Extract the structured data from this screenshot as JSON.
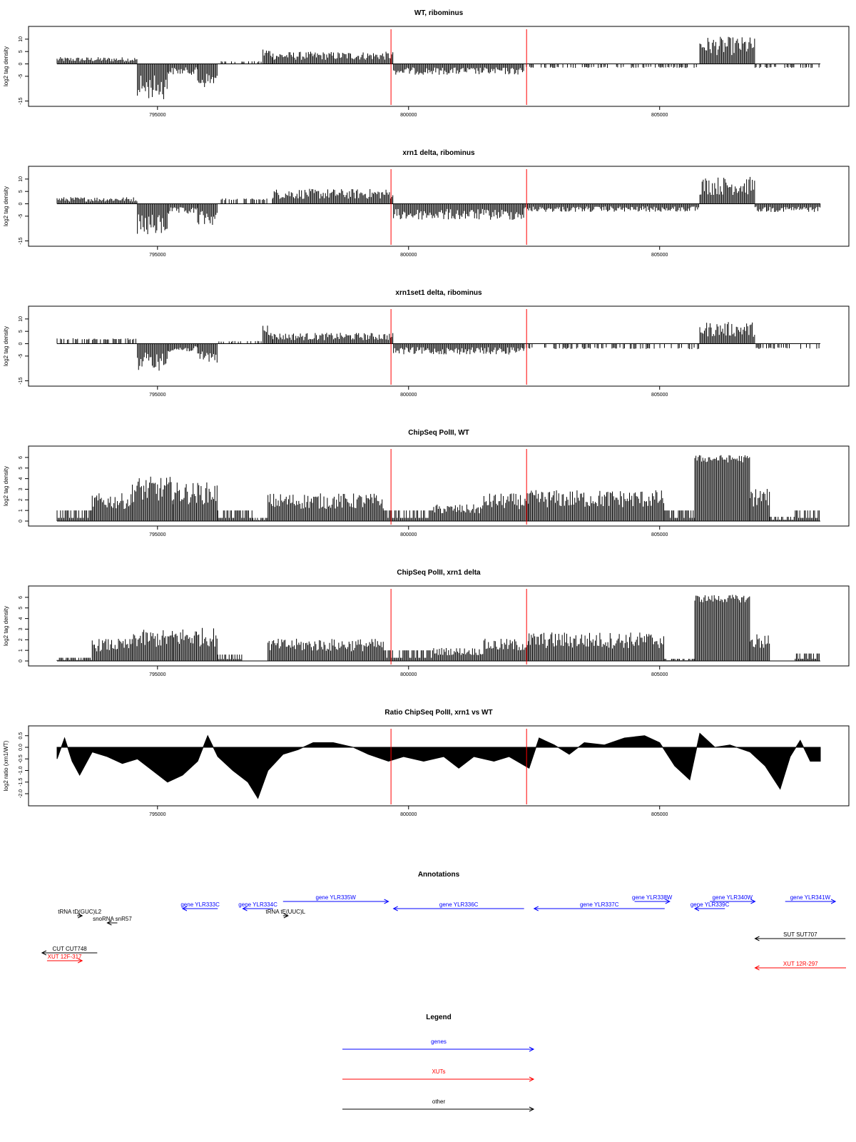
{
  "chart_data": [
    {
      "type": "bar",
      "title": "WT, ribominus",
      "ylabel": "log2 tag density",
      "ylim": [
        -16,
        14
      ],
      "yticks": [
        -15,
        -5,
        0,
        5,
        10
      ],
      "xlim": [
        793000,
        808200
      ],
      "xticks": [
        795000,
        800000,
        805000
      ],
      "xtick_labels": [
        "795000",
        "800000",
        "805000"
      ],
      "markers": [
        799650,
        802350
      ],
      "segments": [
        {
          "from": 793000,
          "to": 794600,
          "value": 2.5
        },
        {
          "from": 794600,
          "to": 795200,
          "value": -13
        },
        {
          "from": 795200,
          "to": 795800,
          "value": -4
        },
        {
          "from": 795800,
          "to": 796200,
          "value": -9
        },
        {
          "from": 796200,
          "to": 797100,
          "value": 1
        },
        {
          "from": 797100,
          "to": 797300,
          "value": 6
        },
        {
          "from": 797300,
          "to": 799700,
          "value": 4.5
        },
        {
          "from": 799700,
          "to": 802300,
          "value": -4
        },
        {
          "from": 802300,
          "to": 805800,
          "value": -1.5
        },
        {
          "from": 805800,
          "to": 806900,
          "value": 10
        },
        {
          "from": 806900,
          "to": 808200,
          "value": -1.5
        }
      ]
    },
    {
      "type": "bar",
      "title": "xrn1 delta, ribominus",
      "ylabel": "log2 tag density",
      "ylim": [
        -16,
        14
      ],
      "yticks": [
        -15,
        -5,
        0,
        5,
        10
      ],
      "xlim": [
        793000,
        808200
      ],
      "xticks": [
        795000,
        800000,
        805000
      ],
      "xtick_labels": [
        "795000",
        "800000",
        "805000"
      ],
      "markers": [
        799650,
        802350
      ],
      "segments": [
        {
          "from": 793000,
          "to": 794600,
          "value": 2.5
        },
        {
          "from": 794600,
          "to": 795200,
          "value": -12
        },
        {
          "from": 795200,
          "to": 795800,
          "value": -4
        },
        {
          "from": 795800,
          "to": 796200,
          "value": -8
        },
        {
          "from": 796200,
          "to": 797300,
          "value": 2
        },
        {
          "from": 797300,
          "to": 799700,
          "value": 5.5
        },
        {
          "from": 799700,
          "to": 802300,
          "value": -6
        },
        {
          "from": 802300,
          "to": 805800,
          "value": -3
        },
        {
          "from": 805800,
          "to": 806900,
          "value": 10
        },
        {
          "from": 806900,
          "to": 808200,
          "value": -3
        }
      ]
    },
    {
      "type": "bar",
      "title": "xrn1set1 delta, ribominus",
      "ylabel": "log2 tag density",
      "ylim": [
        -16,
        14
      ],
      "yticks": [
        -15,
        -5,
        0,
        5,
        10
      ],
      "xlim": [
        793000,
        808200
      ],
      "xticks": [
        795000,
        800000,
        805000
      ],
      "xtick_labels": [
        "795000",
        "800000",
        "805000"
      ],
      "markers": [
        799650,
        802350
      ],
      "segments": [
        {
          "from": 793000,
          "to": 794600,
          "value": 2
        },
        {
          "from": 794600,
          "to": 795200,
          "value": -10
        },
        {
          "from": 795200,
          "to": 795800,
          "value": -3
        },
        {
          "from": 795800,
          "to": 796200,
          "value": -7
        },
        {
          "from": 796200,
          "to": 797100,
          "value": 1
        },
        {
          "from": 797100,
          "to": 797300,
          "value": 8
        },
        {
          "from": 797300,
          "to": 799700,
          "value": 4
        },
        {
          "from": 799700,
          "to": 802300,
          "value": -4
        },
        {
          "from": 802300,
          "to": 805800,
          "value": -2
        },
        {
          "from": 805800,
          "to": 806900,
          "value": 8
        },
        {
          "from": 806900,
          "to": 808200,
          "value": -2
        }
      ]
    },
    {
      "type": "bar",
      "title": "ChipSeq PolII, WT",
      "ylabel": "log2 tag density",
      "ylim": [
        -0.2,
        6.8
      ],
      "yticks": [
        0,
        1,
        2,
        3,
        4,
        5,
        6
      ],
      "xlim": [
        793000,
        808200
      ],
      "xticks": [
        795000,
        800000,
        805000
      ],
      "xtick_labels": [
        "795000",
        "800000",
        "805000"
      ],
      "markers": [
        799650,
        802350
      ],
      "segments": [
        {
          "from": 793000,
          "to": 793700,
          "value": 1
        },
        {
          "from": 793700,
          "to": 794500,
          "value": 2.5
        },
        {
          "from": 794500,
          "to": 795300,
          "value": 4
        },
        {
          "from": 795300,
          "to": 796200,
          "value": 3.5
        },
        {
          "from": 796200,
          "to": 796900,
          "value": 1
        },
        {
          "from": 796900,
          "to": 797200,
          "value": 0.3
        },
        {
          "from": 797200,
          "to": 799500,
          "value": 2.5
        },
        {
          "from": 799500,
          "to": 800500,
          "value": 1
        },
        {
          "from": 800500,
          "to": 801500,
          "value": 1.5
        },
        {
          "from": 801500,
          "to": 802400,
          "value": 2.5
        },
        {
          "from": 802400,
          "to": 805100,
          "value": 2.8
        },
        {
          "from": 805100,
          "to": 805700,
          "value": 1
        },
        {
          "from": 805700,
          "to": 806800,
          "value": 6
        },
        {
          "from": 806800,
          "to": 807200,
          "value": 3
        },
        {
          "from": 807200,
          "to": 807700,
          "value": 0.4
        },
        {
          "from": 807700,
          "to": 808200,
          "value": 1
        }
      ]
    },
    {
      "type": "bar",
      "title": "ChipSeq PolII, xrn1 delta",
      "ylabel": "log2 tag density",
      "ylim": [
        -0.2,
        6.8
      ],
      "yticks": [
        0,
        1,
        2,
        3,
        4,
        5,
        6
      ],
      "xlim": [
        793000,
        808200
      ],
      "xticks": [
        795000,
        800000,
        805000
      ],
      "xtick_labels": [
        "795000",
        "800000",
        "805000"
      ],
      "markers": [
        799650,
        802350
      ],
      "segments": [
        {
          "from": 793000,
          "to": 793700,
          "value": 0.3
        },
        {
          "from": 793700,
          "to": 794500,
          "value": 2
        },
        {
          "from": 794500,
          "to": 795300,
          "value": 2.8
        },
        {
          "from": 795300,
          "to": 796200,
          "value": 3
        },
        {
          "from": 796200,
          "to": 796700,
          "value": 0.6
        },
        {
          "from": 796700,
          "to": 797200,
          "value": 0
        },
        {
          "from": 797200,
          "to": 799500,
          "value": 2
        },
        {
          "from": 799500,
          "to": 800500,
          "value": 1
        },
        {
          "from": 800500,
          "to": 801500,
          "value": 1.2
        },
        {
          "from": 801500,
          "to": 802400,
          "value": 2
        },
        {
          "from": 802400,
          "to": 805100,
          "value": 2.6
        },
        {
          "from": 805100,
          "to": 805700,
          "value": 0.2
        },
        {
          "from": 805700,
          "to": 806800,
          "value": 6
        },
        {
          "from": 806800,
          "to": 807200,
          "value": 2.5
        },
        {
          "from": 807200,
          "to": 807700,
          "value": 0
        },
        {
          "from": 807700,
          "to": 808200,
          "value": 0.7
        }
      ]
    },
    {
      "type": "area",
      "title": "Ratio ChipSeq PolII, xrn1 vs WT",
      "ylabel": "log2 ratio (xrn1/WT)",
      "ylim": [
        -2.4,
        0.8
      ],
      "yticks": [
        -2.0,
        -1.5,
        -1.0,
        -0.5,
        0.0,
        0.5
      ],
      "ytick_labels": [
        "-2.0",
        "-1.5",
        "-1.0",
        "-0.5",
        "0.0",
        "0.5"
      ],
      "xlim": [
        793000,
        808200
      ],
      "xticks": [
        795000,
        800000,
        805000
      ],
      "xtick_labels": [
        "795000",
        "800000",
        "805000"
      ],
      "markers": [
        799650,
        802350
      ],
      "points": [
        [
          793000,
          -0.5
        ],
        [
          793150,
          0.4
        ],
        [
          793300,
          -0.6
        ],
        [
          793450,
          -1.2
        ],
        [
          793700,
          -0.2
        ],
        [
          794000,
          -0.4
        ],
        [
          794300,
          -0.7
        ],
        [
          794600,
          -0.5
        ],
        [
          794900,
          -1.0
        ],
        [
          795200,
          -1.5
        ],
        [
          795500,
          -1.2
        ],
        [
          795800,
          -0.6
        ],
        [
          796000,
          0.5
        ],
        [
          796200,
          -0.4
        ],
        [
          796500,
          -1.0
        ],
        [
          796800,
          -1.5
        ],
        [
          797000,
          -2.2
        ],
        [
          797200,
          -1.0
        ],
        [
          797500,
          -0.3
        ],
        [
          797800,
          -0.1
        ],
        [
          798100,
          0.2
        ],
        [
          798500,
          0.2
        ],
        [
          798900,
          0.0
        ],
        [
          799200,
          -0.3
        ],
        [
          799600,
          -0.6
        ],
        [
          799900,
          -0.4
        ],
        [
          800300,
          -0.6
        ],
        [
          800700,
          -0.4
        ],
        [
          801000,
          -0.9
        ],
        [
          801300,
          -0.4
        ],
        [
          801700,
          -0.6
        ],
        [
          802000,
          -0.4
        ],
        [
          802400,
          -0.9
        ],
        [
          802600,
          0.4
        ],
        [
          802900,
          0.1
        ],
        [
          803200,
          -0.3
        ],
        [
          803500,
          0.2
        ],
        [
          803900,
          0.1
        ],
        [
          804300,
          0.4
        ],
        [
          804700,
          0.5
        ],
        [
          805000,
          0.2
        ],
        [
          805300,
          -0.8
        ],
        [
          805600,
          -1.4
        ],
        [
          805800,
          0.6
        ],
        [
          806100,
          0.0
        ],
        [
          806400,
          0.1
        ],
        [
          806800,
          -0.2
        ],
        [
          807100,
          -0.8
        ],
        [
          807400,
          -1.8
        ],
        [
          807600,
          -0.4
        ],
        [
          807800,
          0.3
        ],
        [
          808000,
          -0.6
        ],
        [
          808200,
          -0.6
        ]
      ]
    }
  ],
  "annotations": {
    "title": "Annotations",
    "items": [
      {
        "label": "gene YLR333C",
        "color": "#0000ff",
        "from": 796200,
        "to": 795500,
        "row": 0
      },
      {
        "label": "gene YLR334C",
        "color": "#0000ff",
        "from": 797300,
        "to": 796700,
        "row": 0
      },
      {
        "label": "gene YLR335W",
        "color": "#0000ff",
        "from": 797500,
        "to": 799600,
        "row": -1
      },
      {
        "label": "gene YLR336C",
        "color": "#0000ff",
        "from": 802300,
        "to": 799700,
        "row": 1
      },
      {
        "label": "gene YLR337C",
        "color": "#0000ff",
        "from": 805100,
        "to": 802500,
        "row": 1
      },
      {
        "label": "gene YLR338W",
        "color": "#0000ff",
        "from": 804500,
        "to": 805200,
        "row": -1
      },
      {
        "label": "gene YLR339C",
        "color": "#0000ff",
        "from": 806300,
        "to": 805700,
        "row": 1
      },
      {
        "label": "gene YLR340W",
        "color": "#0000ff",
        "from": 806000,
        "to": 806900,
        "row": -1
      },
      {
        "label": "gene YLR341W",
        "color": "#0000ff",
        "from": 807500,
        "to": 808500,
        "row": -1
      },
      {
        "label": "tRNA tD(GUC)L2",
        "color": "#000000",
        "from": 793400,
        "to": 793500,
        "row": 2
      },
      {
        "label": "snoRNA snR57",
        "color": "#000000",
        "from": 794200,
        "to": 794000,
        "row": 3
      },
      {
        "label": "tRNA tE(UUC)L",
        "color": "#000000",
        "from": 797500,
        "to": 797600,
        "row": 2
      },
      {
        "label": "CUT CUT748",
        "color": "#000000",
        "from": 793800,
        "to": 792700,
        "row": 4
      },
      {
        "label": "XUT 12F-317",
        "color": "#ff0000",
        "from": 792800,
        "to": 793500,
        "row": 5
      },
      {
        "label": "SUT SUT707",
        "color": "#000000",
        "from": 808700,
        "to": 806900,
        "row": 6
      },
      {
        "label": "XUT 12R-297",
        "color": "#ff0000",
        "from": 809000,
        "to": 806900,
        "row": 7
      }
    ]
  },
  "legend": {
    "title": "Legend",
    "items": [
      {
        "label": "genes",
        "color": "#0000ff"
      },
      {
        "label": "XUTs",
        "color": "#ff0000"
      },
      {
        "label": "other",
        "color": "#000000"
      }
    ]
  }
}
